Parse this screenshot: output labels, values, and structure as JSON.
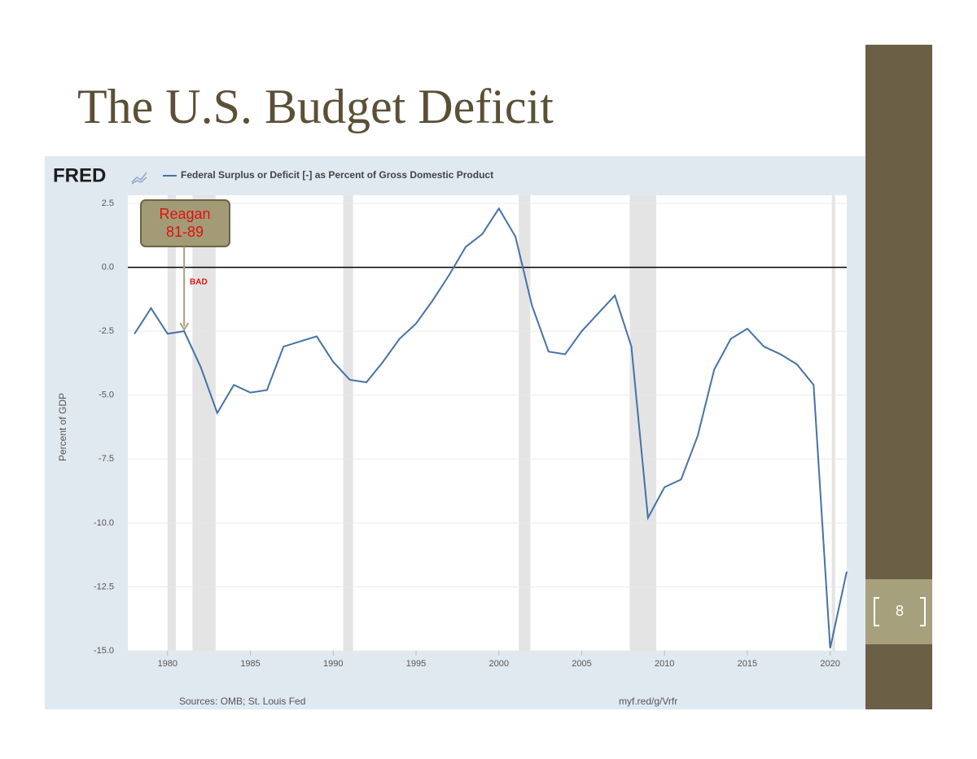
{
  "slide": {
    "title": "The U.S. Budget Deficit",
    "page_number": "8"
  },
  "chart_data": {
    "type": "line",
    "brand": "FRED",
    "y_label": "Percent of GDP",
    "source": "Sources: OMB; St. Louis Fed",
    "link": "myf.red/g/Vrfr",
    "x": [
      1978,
      1979,
      1980,
      1981,
      1982,
      1983,
      1984,
      1985,
      1986,
      1987,
      1988,
      1989,
      1990,
      1991,
      1992,
      1993,
      1994,
      1995,
      1996,
      1997,
      1998,
      1999,
      2000,
      2001,
      2002,
      2003,
      2004,
      2005,
      2006,
      2007,
      2008,
      2009,
      2010,
      2011,
      2012,
      2013,
      2014,
      2015,
      2016,
      2017,
      2018,
      2019,
      2020,
      2021
    ],
    "series": [
      {
        "name": "Federal Surplus or Deficit [-] as Percent of Gross Domestic Product",
        "color": "#4572a7",
        "values": [
          -2.6,
          -1.6,
          -2.6,
          -2.5,
          -3.9,
          -5.7,
          -4.6,
          -4.9,
          -4.8,
          -3.1,
          -2.9,
          -2.7,
          -3.7,
          -4.4,
          -4.5,
          -3.7,
          -2.8,
          -2.2,
          -1.3,
          -0.3,
          0.8,
          1.3,
          2.3,
          1.2,
          -1.5,
          -3.3,
          -3.4,
          -2.5,
          -1.8,
          -1.1,
          -3.1,
          -9.8,
          -8.6,
          -8.3,
          -6.6,
          -4.0,
          -2.8,
          -2.4,
          -3.1,
          -3.4,
          -3.8,
          -4.6,
          -14.9,
          -11.9
        ]
      }
    ],
    "recessions": [
      [
        1980.0,
        1980.5
      ],
      [
        1981.5,
        1982.9
      ],
      [
        1990.6,
        1991.2
      ],
      [
        2001.2,
        2001.9
      ],
      [
        2007.9,
        2009.5
      ],
      [
        2020.1,
        2020.3
      ]
    ],
    "xlim": [
      1977.6,
      2021
    ],
    "xticks": [
      1980,
      1985,
      1990,
      1995,
      2000,
      2005,
      2010,
      2015,
      2020
    ],
    "ylim": [
      -15,
      2.5
    ],
    "yticks": [
      2.5,
      {
        "value": 0,
        "label": "0.0"
      },
      -2.5,
      {
        "value": -5,
        "label": "-5.0"
      },
      -7.5,
      {
        "value": -10,
        "label": "-10.0"
      },
      -12.5,
      {
        "value": -15,
        "label": "-15.0"
      }
    ],
    "grid": true,
    "annotation": {
      "lines": [
        "Reagan",
        "81-89"
      ],
      "note": "BAD"
    }
  }
}
